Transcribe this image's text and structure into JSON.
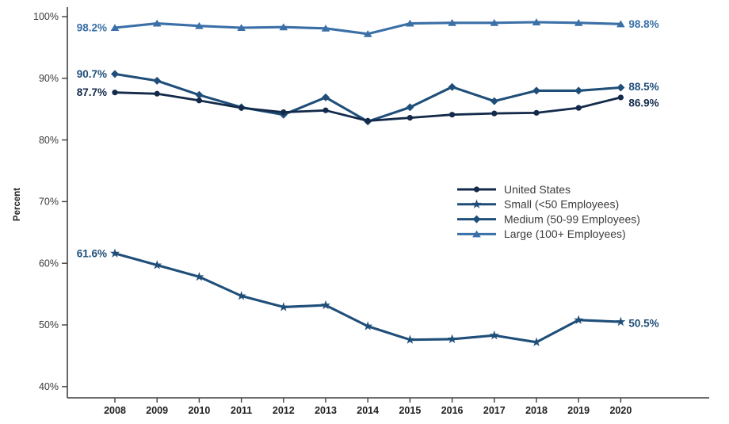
{
  "chart_data": {
    "type": "line",
    "title": "",
    "ylabel": "Percent",
    "xlabel": "",
    "ylim": [
      40,
      100
    ],
    "grid": false,
    "legend_position": "center-right",
    "axis_color": "#404040",
    "tick_label_color": "#3a3a3a",
    "year_label_color": "#1f1f1f",
    "legend_text_color": "#3c3c3c",
    "ytick_labels": [
      "100%",
      "90%",
      "80%",
      "70%",
      "60%",
      "50%",
      "40%"
    ],
    "ytick_values": [
      100,
      90,
      80,
      70,
      60,
      50,
      40
    ],
    "categories": [
      "2008",
      "2009",
      "2010",
      "2011",
      "2012",
      "2013",
      "2014",
      "2015",
      "2016",
      "2017",
      "2018",
      "2019",
      "2020"
    ],
    "series": [
      {
        "name": "United States",
        "marker": "circle",
        "color": "#142a4a",
        "first_label": "87.7%",
        "last_label": "86.9%",
        "values": [
          87.7,
          87.5,
          86.4,
          85.2,
          84.5,
          84.8,
          83.1,
          83.6,
          84.1,
          84.3,
          84.4,
          85.2,
          86.9
        ]
      },
      {
        "name": "Small (<50 Employees)",
        "marker": "star",
        "color": "#1f4e79",
        "first_label": "61.6%",
        "last_label": "50.5%",
        "values": [
          61.6,
          59.7,
          57.8,
          54.7,
          52.9,
          53.2,
          49.8,
          47.6,
          47.7,
          48.3,
          47.2,
          50.8,
          50.5
        ]
      },
      {
        "name": "Medium (50-99 Employees)",
        "marker": "diamond",
        "color": "#1f4e79",
        "first_label": "90.7%",
        "last_label": "88.5%",
        "values": [
          90.7,
          89.6,
          87.3,
          85.3,
          84.1,
          86.9,
          83.0,
          85.3,
          88.6,
          86.3,
          88.0,
          88.0,
          88.5
        ]
      },
      {
        "name": "Large (100+ Employees)",
        "marker": "triangle",
        "color": "#3a6fa7",
        "first_label": "98.2%",
        "last_label": "98.8%",
        "values": [
          98.2,
          98.9,
          98.5,
          98.2,
          98.3,
          98.1,
          97.2,
          98.9,
          99.0,
          99.0,
          99.1,
          99.0,
          98.8
        ]
      }
    ]
  }
}
